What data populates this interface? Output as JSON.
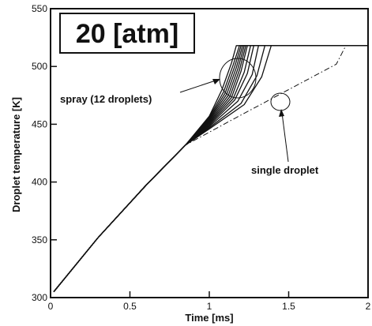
{
  "chart_data": {
    "type": "line",
    "title": "20 [atm]",
    "xlabel": "Time [ms]",
    "ylabel": "Droplet temperature [K]",
    "xlim": [
      0,
      2
    ],
    "ylim": [
      300,
      550
    ],
    "xticks": [
      0,
      0.5,
      1,
      1.5,
      2
    ],
    "xtick_labels": [
      "0",
      "0.5",
      "1",
      "1.5",
      "2"
    ],
    "yticks": [
      300,
      350,
      400,
      450,
      500,
      550
    ],
    "ytick_labels": [
      "300",
      "350",
      "400",
      "450",
      "500",
      "550"
    ],
    "grid": false,
    "legend": "none",
    "annotations": [
      {
        "text": "spray (12 droplets)",
        "target": [
          1.18,
          492
        ]
      },
      {
        "text": "single droplet",
        "target": [
          1.44,
          487
        ]
      }
    ],
    "series": [
      {
        "style": "dash-dot",
        "points": [
          [
            0.02,
            305
          ],
          [
            0.3,
            352
          ],
          [
            0.6,
            397
          ],
          [
            0.85,
            432
          ],
          [
            1.2,
            458
          ],
          [
            1.5,
            480
          ],
          [
            1.8,
            502
          ],
          [
            1.86,
            518
          ],
          [
            2.0,
            518
          ]
        ]
      },
      {
        "style": "solid",
        "points": [
          [
            0.02,
            305
          ],
          [
            0.3,
            352
          ],
          [
            0.6,
            397
          ],
          [
            0.85,
            432
          ],
          [
            1.0,
            457
          ],
          [
            1.08,
            480
          ],
          [
            1.14,
            503
          ],
          [
            1.17,
            518
          ],
          [
            2.0,
            518
          ]
        ]
      },
      {
        "style": "solid",
        "points": [
          [
            0.02,
            305
          ],
          [
            0.3,
            352
          ],
          [
            0.6,
            397
          ],
          [
            0.85,
            432
          ],
          [
            1.0,
            456
          ],
          [
            1.09,
            478
          ],
          [
            1.15,
            501
          ],
          [
            1.19,
            518
          ],
          [
            2.0,
            518
          ]
        ]
      },
      {
        "style": "solid",
        "points": [
          [
            0.02,
            305
          ],
          [
            0.3,
            352
          ],
          [
            0.6,
            397
          ],
          [
            0.85,
            432
          ],
          [
            1.0,
            455
          ],
          [
            1.1,
            477
          ],
          [
            1.16,
            500
          ],
          [
            1.2,
            518
          ],
          [
            2.0,
            518
          ]
        ]
      },
      {
        "style": "solid",
        "points": [
          [
            0.02,
            305
          ],
          [
            0.3,
            352
          ],
          [
            0.6,
            397
          ],
          [
            0.85,
            432
          ],
          [
            1.0,
            454
          ],
          [
            1.11,
            476
          ],
          [
            1.17,
            499
          ],
          [
            1.21,
            518
          ],
          [
            2.0,
            518
          ]
        ]
      },
      {
        "style": "solid",
        "points": [
          [
            0.02,
            305
          ],
          [
            0.3,
            352
          ],
          [
            0.6,
            397
          ],
          [
            0.85,
            432
          ],
          [
            1.0,
            453
          ],
          [
            1.12,
            475
          ],
          [
            1.18,
            498
          ],
          [
            1.22,
            518
          ],
          [
            2.0,
            518
          ]
        ]
      },
      {
        "style": "solid",
        "points": [
          [
            0.02,
            305
          ],
          [
            0.3,
            352
          ],
          [
            0.6,
            397
          ],
          [
            0.85,
            432
          ],
          [
            1.0,
            452
          ],
          [
            1.13,
            474
          ],
          [
            1.19,
            497
          ],
          [
            1.23,
            518
          ],
          [
            2.0,
            518
          ]
        ]
      },
      {
        "style": "solid",
        "points": [
          [
            0.02,
            305
          ],
          [
            0.3,
            352
          ],
          [
            0.6,
            397
          ],
          [
            0.85,
            432
          ],
          [
            1.0,
            451
          ],
          [
            1.14,
            473
          ],
          [
            1.2,
            496
          ],
          [
            1.24,
            518
          ],
          [
            2.0,
            518
          ]
        ]
      },
      {
        "style": "solid",
        "points": [
          [
            0.02,
            305
          ],
          [
            0.3,
            352
          ],
          [
            0.6,
            397
          ],
          [
            0.85,
            432
          ],
          [
            1.0,
            450
          ],
          [
            1.15,
            472
          ],
          [
            1.22,
            495
          ],
          [
            1.26,
            518
          ],
          [
            2.0,
            518
          ]
        ]
      },
      {
        "style": "solid",
        "points": [
          [
            0.02,
            305
          ],
          [
            0.3,
            352
          ],
          [
            0.6,
            397
          ],
          [
            0.85,
            432
          ],
          [
            1.0,
            449
          ],
          [
            1.16,
            471
          ],
          [
            1.24,
            494
          ],
          [
            1.28,
            518
          ],
          [
            2.0,
            518
          ]
        ]
      },
      {
        "style": "solid",
        "points": [
          [
            0.02,
            305
          ],
          [
            0.3,
            352
          ],
          [
            0.6,
            397
          ],
          [
            0.85,
            432
          ],
          [
            1.0,
            448
          ],
          [
            1.18,
            470
          ],
          [
            1.27,
            493
          ],
          [
            1.31,
            518
          ],
          [
            2.0,
            518
          ]
        ]
      },
      {
        "style": "solid",
        "points": [
          [
            0.02,
            305
          ],
          [
            0.3,
            352
          ],
          [
            0.6,
            397
          ],
          [
            0.85,
            432
          ],
          [
            1.0,
            447
          ],
          [
            1.2,
            468
          ],
          [
            1.3,
            492
          ],
          [
            1.35,
            518
          ],
          [
            2.0,
            518
          ]
        ]
      },
      {
        "style": "solid",
        "points": [
          [
            0.02,
            305
          ],
          [
            0.3,
            352
          ],
          [
            0.6,
            397
          ],
          [
            0.85,
            432
          ],
          [
            1.0,
            446
          ],
          [
            1.22,
            467
          ],
          [
            1.33,
            491
          ],
          [
            1.39,
            518
          ],
          [
            2.0,
            518
          ]
        ]
      }
    ]
  },
  "colors": {
    "line": "#111111",
    "background": "#ffffff"
  }
}
